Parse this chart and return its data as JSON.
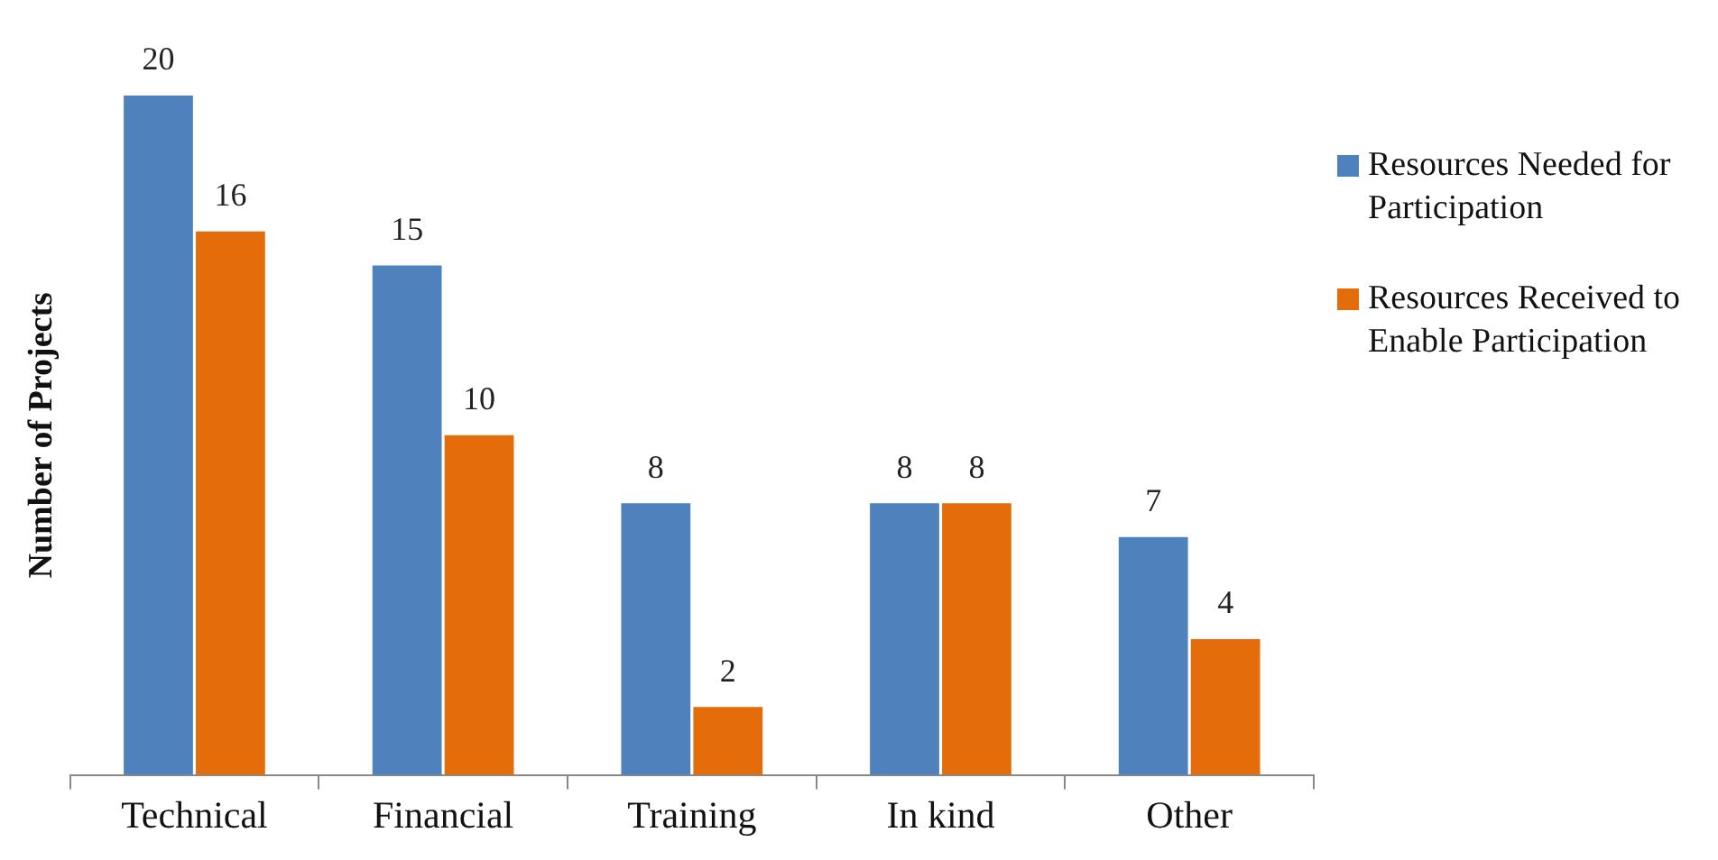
{
  "chart_data": {
    "type": "bar",
    "ylabel": "Number of Projects",
    "categories": [
      "Technical",
      "Financial",
      "Training",
      "In kind",
      "Other"
    ],
    "series": [
      {
        "name": "Resources Needed for Participation",
        "color": "#4f81bd",
        "values": [
          20,
          15,
          8,
          8,
          7
        ]
      },
      {
        "name": "Resources Received to Enable Participation",
        "color": "#e46c0a",
        "values": [
          16,
          10,
          2,
          8,
          4
        ]
      }
    ],
    "data_labels": true,
    "legend": "right",
    "grid": false
  }
}
